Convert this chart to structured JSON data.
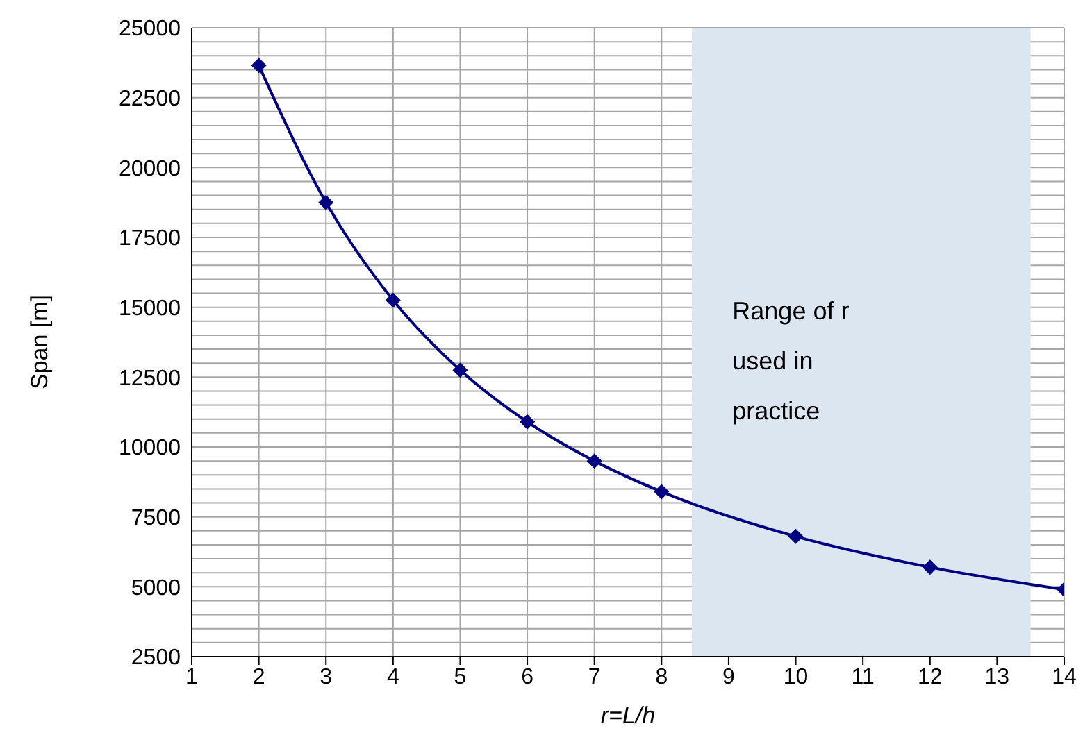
{
  "chart_data": {
    "type": "line",
    "xlabel": "r=L/h",
    "ylabel": "Span [m]",
    "x": [
      2,
      3,
      4,
      5,
      6,
      7,
      8,
      10,
      12,
      14
    ],
    "series": [
      {
        "color": "#000080",
        "values": [
          23650,
          18750,
          15250,
          12750,
          10900,
          9500,
          8400,
          6800,
          5700,
          4900
        ]
      }
    ],
    "xlim": [
      1,
      14
    ],
    "xticks": [
      1,
      2,
      3,
      4,
      5,
      6,
      7,
      8,
      9,
      10,
      11,
      12,
      13,
      14
    ],
    "ylim": [
      2500,
      25000
    ],
    "yticks": [
      2500,
      {
        "value": 3000,
        "label": null
      },
      {
        "value": 3500,
        "label": null
      },
      {
        "value": 4000,
        "label": null
      },
      {
        "value": 4500,
        "label": null
      },
      5000,
      {
        "value": 5500,
        "label": null
      },
      {
        "value": 6000,
        "label": null
      },
      {
        "value": 6500,
        "label": null
      },
      {
        "value": 7000,
        "label": null
      },
      7500,
      {
        "value": 8000,
        "label": null
      },
      {
        "value": 8500,
        "label": null
      },
      {
        "value": 9000,
        "label": null
      },
      {
        "value": 9500,
        "label": null
      },
      10000,
      {
        "value": 10500,
        "label": null
      },
      {
        "value": 11000,
        "label": null
      },
      {
        "value": 11500,
        "label": null
      },
      {
        "value": 12000,
        "label": null
      },
      12500,
      {
        "value": 13000,
        "label": null
      },
      {
        "value": 13500,
        "label": null
      },
      {
        "value": 14000,
        "label": null
      },
      {
        "value": 14500,
        "label": null
      },
      15000,
      {
        "value": 15500,
        "label": null
      },
      {
        "value": 16000,
        "label": null
      },
      {
        "value": 16500,
        "label": null
      },
      {
        "value": 17000,
        "label": null
      },
      17500,
      {
        "value": 18000,
        "label": null
      },
      {
        "value": 18500,
        "label": null
      },
      {
        "value": 19000,
        "label": null
      },
      {
        "value": 19500,
        "label": null
      },
      20000,
      {
        "value": 20500,
        "label": null
      },
      {
        "value": 21000,
        "label": null
      },
      {
        "value": 21500,
        "label": null
      },
      {
        "value": 22000,
        "label": null
      },
      22500,
      {
        "value": 23000,
        "label": null
      },
      {
        "value": 23500,
        "label": null
      },
      {
        "value": 24000,
        "label": null
      },
      {
        "value": 24500,
        "label": null
      },
      25000
    ],
    "bands": [
      {
        "axis": "x",
        "from": 8.45,
        "to": 13.5,
        "label": "Range of r used in practice",
        "color": "#dce6f1"
      }
    ],
    "grid": true,
    "marker": "diamond",
    "line_style": "solid"
  }
}
